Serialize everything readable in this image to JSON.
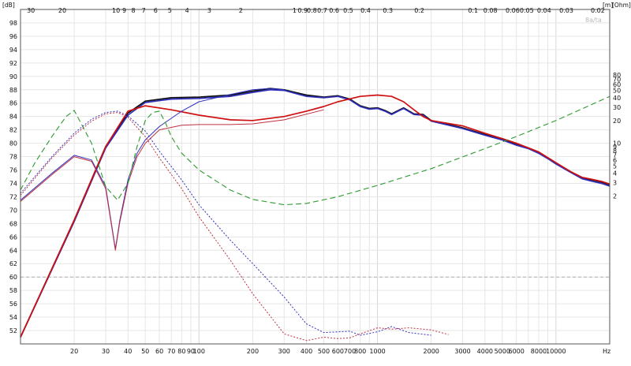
{
  "chart_data": {
    "type": "line",
    "title": "",
    "x_axis": {
      "label": "Hz",
      "scale": "log",
      "range": [
        10,
        20000
      ],
      "tick_labels": [
        "20",
        "30",
        "40",
        "50",
        "60",
        "70",
        "80",
        "90",
        "100",
        "200",
        "300",
        "400",
        "500",
        "600",
        "700",
        "800",
        "1000",
        "2000",
        "3000",
        "4000",
        "5000",
        "6000",
        "8000",
        "10000"
      ]
    },
    "top_axis": {
      "unit": "[m]",
      "note": "wavelength in metres",
      "tick_labels": [
        "30",
        "20",
        "10",
        "9",
        "8",
        "7",
        "6",
        "5",
        "4",
        "3",
        "2",
        "1",
        "0.9",
        "0.8",
        "0.7",
        "0.6",
        "0.5",
        "0.4",
        "0.3",
        "0.2",
        "0.1",
        "0.08",
        "0.06",
        "0.05",
        "0.04",
        "0.03",
        "0.02"
      ]
    },
    "y_axis_left": {
      "label": "[dB]",
      "range": [
        50,
        100
      ],
      "tick_labels": [
        "52",
        "54",
        "56",
        "58",
        "60",
        "62",
        "64",
        "66",
        "68",
        "70",
        "72",
        "74",
        "76",
        "78",
        "80",
        "82",
        "84",
        "86",
        "88",
        "90",
        "92",
        "94",
        "96",
        "98"
      ]
    },
    "y_axis_right": {
      "label": "[Ohm]",
      "scale": "log",
      "tick_labels": [
        "2",
        "3",
        "4",
        "5",
        "6",
        "7",
        "8",
        "9",
        "10",
        "20",
        "30",
        "40",
        "50",
        "60",
        "70",
        "80"
      ]
    },
    "watermark": "8a/ta",
    "grid": true,
    "series": [
      {
        "style": "solid",
        "color": "#101010",
        "x": [
          10,
          20,
          30,
          40,
          50,
          70,
          100,
          150,
          200,
          250,
          300,
          400,
          500,
          600,
          700,
          800,
          900,
          1000,
          1100,
          1200,
          1400,
          1600,
          1800,
          2000,
          3000,
          4000,
          5000,
          6000,
          7000,
          8000,
          9000,
          10000,
          12000,
          14000,
          16000,
          18000,
          20000
        ],
        "y": [
          51,
          68.5,
          79.5,
          84.5,
          86.3,
          86.8,
          86.9,
          87.2,
          87.8,
          88.2,
          88.0,
          87.2,
          86.9,
          87.1,
          86.6,
          85.6,
          85.2,
          85.3,
          84.9,
          84.4,
          85.3,
          84.4,
          84.3,
          83.4,
          82.3,
          81.3,
          80.6,
          79.8,
          79.3,
          78.6,
          77.8,
          77.0,
          75.8,
          74.8,
          74.5,
          74.2,
          73.8
        ]
      },
      {
        "style": "solid",
        "color": "#2d2db8",
        "x": [
          10,
          20,
          30,
          40,
          50,
          70,
          100,
          150,
          200,
          250,
          300,
          400,
          500,
          600,
          700,
          800,
          900,
          1000,
          1100,
          1200,
          1400,
          1600,
          1800,
          2000,
          3000,
          4000,
          5000,
          6000,
          7000,
          8000,
          9000,
          10000,
          12000,
          14000,
          16000,
          18000,
          20000
        ],
        "y": [
          51,
          68.3,
          79.3,
          84.2,
          86.1,
          86.6,
          86.7,
          87.0,
          87.6,
          88.0,
          87.9,
          87.0,
          86.8,
          87.0,
          86.5,
          85.5,
          85.1,
          85.2,
          84.8,
          84.3,
          85.2,
          84.3,
          84.2,
          83.3,
          82.2,
          81.2,
          80.5,
          79.7,
          79.2,
          78.5,
          77.7,
          76.9,
          75.7,
          74.7,
          74.3,
          74.0,
          73.6
        ]
      },
      {
        "style": "solid",
        "color": "#d01010",
        "x": [
          10,
          20,
          30,
          40,
          50,
          70,
          100,
          150,
          200,
          300,
          400,
          500,
          600,
          800,
          1000,
          1200,
          1400,
          1600,
          1800,
          2000,
          3000,
          4000,
          5000,
          6000,
          8000,
          10000,
          12000,
          14000,
          16000,
          18000,
          20000
        ],
        "y": [
          51,
          68.5,
          79.5,
          84.8,
          85.6,
          85.0,
          84.2,
          83.5,
          83.4,
          84.0,
          84.8,
          85.5,
          86.2,
          87.0,
          87.2,
          87.0,
          86.2,
          85.0,
          84.0,
          83.4,
          82.6,
          81.5,
          80.7,
          80.0,
          78.7,
          77.1,
          75.8,
          74.9,
          74.6,
          74.3,
          73.9
        ]
      },
      {
        "style": "solid",
        "color": "#3030c0",
        "x": [
          10,
          15,
          20,
          25,
          30,
          34,
          36,
          40,
          45,
          50,
          60,
          80,
          100,
          150,
          200,
          250,
          300
        ],
        "y": [
          71.5,
          75.5,
          78.2,
          77.5,
          73.5,
          64.2,
          68.5,
          74.5,
          78.5,
          80.5,
          82.5,
          84.8,
          86.2,
          87.3,
          88.0,
          88.2,
          88.0
        ]
      },
      {
        "style": "solid",
        "color": "#c03040",
        "x": [
          10,
          15,
          20,
          25,
          30,
          34,
          36,
          40,
          45,
          50,
          60,
          80,
          100,
          150,
          200,
          300,
          500
        ],
        "y": [
          71.3,
          75.3,
          78.0,
          77.3,
          73.2,
          64.0,
          68.2,
          74.0,
          78.0,
          80.0,
          82.0,
          82.7,
          82.8,
          82.8,
          82.9,
          83.5,
          85.0
        ]
      },
      {
        "style": "dashed",
        "color": "#2e9a2e",
        "x": [
          10,
          12,
          15,
          18,
          20,
          25,
          30,
          35,
          40,
          45,
          50,
          55,
          60,
          65,
          70,
          80,
          100,
          150,
          200,
          300,
          400,
          600,
          1000,
          2000,
          4000,
          6000,
          10000,
          15000,
          20000
        ],
        "y": [
          73,
          77,
          81,
          84,
          84.9,
          80,
          73.5,
          71.5,
          74,
          79.5,
          83.4,
          84.6,
          84.8,
          83,
          81,
          78.5,
          76,
          73,
          71.6,
          70.8,
          71.0,
          72.0,
          73.7,
          76.2,
          79.2,
          81.0,
          83.4,
          85.5,
          87
        ]
      },
      {
        "style": "dotted",
        "color": "#3030c0",
        "x": [
          10,
          15,
          20,
          25,
          30,
          35,
          40,
          50,
          60,
          80,
          100,
          150,
          200,
          300,
          400,
          500,
          600,
          700,
          800,
          1000,
          1200,
          1500,
          2000
        ],
        "y": [
          72.5,
          78.0,
          81.5,
          83.6,
          84.6,
          84.8,
          84.1,
          81.8,
          78.8,
          74.5,
          70.8,
          65.5,
          62.0,
          57.0,
          53.0,
          51.7,
          51.8,
          51.9,
          51.3,
          51.8,
          52.6,
          51.7,
          51.3
        ]
      },
      {
        "style": "dotted",
        "color": "#c03040",
        "x": [
          10,
          15,
          20,
          25,
          30,
          35,
          40,
          50,
          60,
          80,
          100,
          150,
          200,
          300,
          400,
          500,
          600,
          700,
          800,
          1000,
          1200,
          1500,
          2000,
          2500
        ],
        "y": [
          72.2,
          77.8,
          81.2,
          83.3,
          84.4,
          84.6,
          83.9,
          81.0,
          77.8,
          73.2,
          69.0,
          62.5,
          57.5,
          51.5,
          50.5,
          51.0,
          50.8,
          50.9,
          51.5,
          52.4,
          52.2,
          52.4,
          52.1,
          51.4
        ]
      }
    ]
  }
}
